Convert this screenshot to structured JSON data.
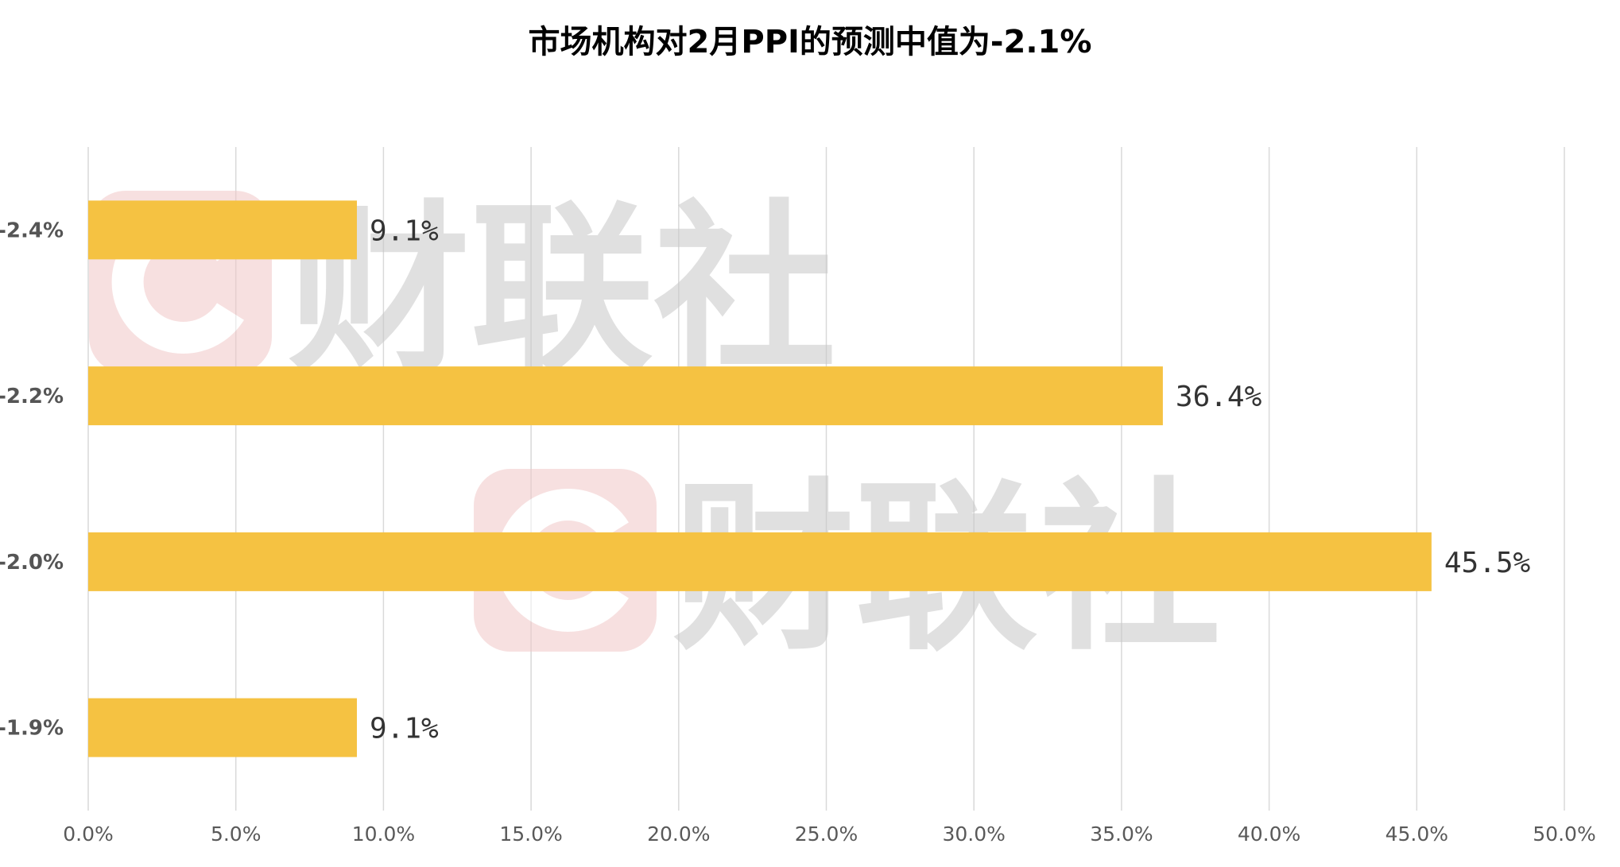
{
  "title": "市场机构对2月PPI的预测中值为-2.1%",
  "watermark": {
    "text": "财联社",
    "icon": "c-logo-icon"
  },
  "colors": {
    "bar": "#F5C242",
    "grid": "#D9D9D9",
    "axis": "#D9D9D9",
    "title": "#000000",
    "tick": "#595959",
    "category": "#555555",
    "label": "#333333",
    "wm_text": "#C8C8C8",
    "wm_logo": "#F2C8C8"
  },
  "chart_data": {
    "type": "bar",
    "orientation": "horizontal",
    "title": "市场机构对2月PPI的预测中值为-2.1%",
    "categories": [
      "-2.4%",
      "-2.2%",
      "-2.0%",
      "-1.9%"
    ],
    "values": [
      9.1,
      36.4,
      45.5,
      9.1
    ],
    "value_labels": [
      "9.1%",
      "36.4%",
      "45.5%",
      "9.1%"
    ],
    "xlim": [
      0,
      50
    ],
    "xticks": [
      0,
      5,
      10,
      15,
      20,
      25,
      30,
      35,
      40,
      45,
      50
    ],
    "xtick_labels": [
      "0.0%",
      "5.0%",
      "10.0%",
      "15.0%",
      "20.0%",
      "25.0%",
      "30.0%",
      "35.0%",
      "40.0%",
      "45.0%",
      "50.0%"
    ],
    "xlabel": "",
    "ylabel": "",
    "grid": "vertical",
    "legend": "none"
  }
}
